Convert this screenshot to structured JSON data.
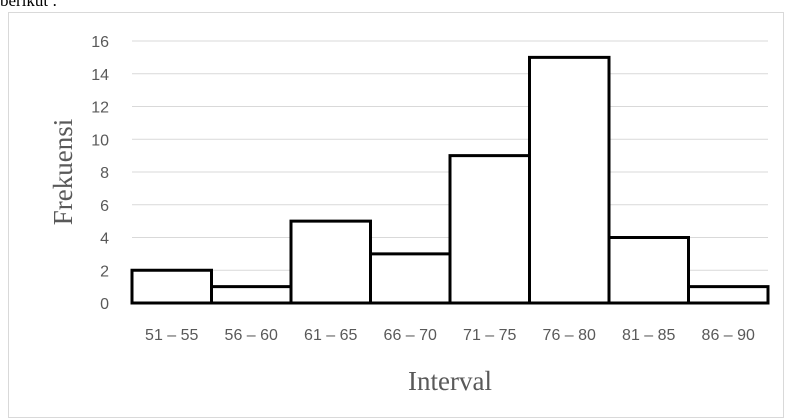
{
  "intro": {
    "text": "berikut :"
  },
  "chart_data": {
    "type": "bar",
    "categories": [
      "51 – 55",
      "56 – 60",
      "61 – 65",
      "66 – 70",
      "71 – 75",
      "76 – 80",
      "81 – 85",
      "86 – 90"
    ],
    "values": [
      2,
      1,
      5,
      3,
      9,
      15,
      4,
      1
    ],
    "xlabel": "Interval",
    "ylabel": "Frekuensi",
    "ylim": [
      0,
      16
    ],
    "yticks": [
      0,
      2,
      4,
      6,
      8,
      10,
      12,
      14,
      16
    ],
    "grid": true,
    "legend": "none",
    "bar_fill": "#ffffff",
    "bar_stroke": "#000000",
    "grid_color": "#d9d9d9"
  }
}
